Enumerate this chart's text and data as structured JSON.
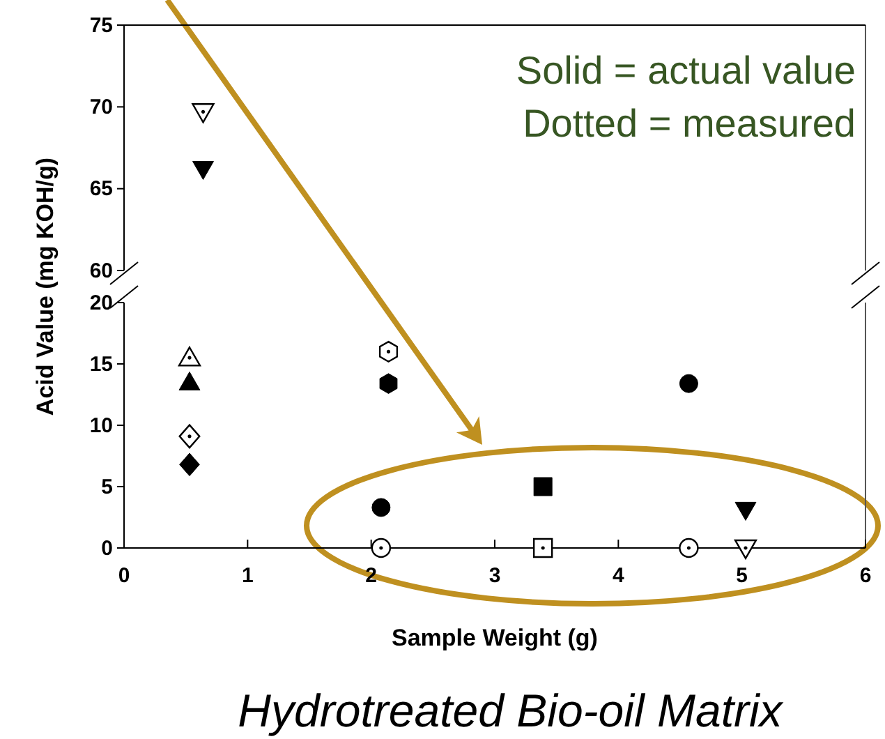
{
  "chart_data": [
    {
      "type": "scatter",
      "xlim": [
        0,
        6
      ],
      "ylim": [
        60,
        75
      ],
      "yticks": [
        60,
        65,
        70,
        75
      ],
      "tick_labels": "y",
      "grid": false,
      "annotations": [
        "Solid = actual value",
        "Dotted = measured"
      ],
      "series": [
        {
          "color": "#ffffff",
          "marker": "triangle-down",
          "x": [
            0.64
          ],
          "values": [
            69.7
          ]
        },
        {
          "color": "#000000",
          "marker": "triangle-down",
          "x": [
            0.64
          ],
          "values": [
            66.2
          ]
        }
      ]
    },
    {
      "type": "scatter",
      "title": "Hydrotreated Bio-oil Matrix",
      "xlabel": "Sample Weight (g)",
      "ylabel": "Acid Value (mg KOH/g)",
      "xlim": [
        0,
        6
      ],
      "xticks": [
        0,
        1,
        2,
        3,
        4,
        5,
        6
      ],
      "ylim": [
        0,
        20
      ],
      "yticks": [
        0,
        5,
        10,
        15,
        20
      ],
      "grid": false,
      "series": [
        {
          "color": "#ffffff",
          "marker": "triangle",
          "x": [
            0.53
          ],
          "values": [
            15.5
          ]
        },
        {
          "color": "#000000",
          "marker": "triangle",
          "x": [
            0.53
          ],
          "values": [
            13.5
          ]
        },
        {
          "color": "#ffffff",
          "marker": "diamond",
          "x": [
            0.53
          ],
          "values": [
            9.1
          ]
        },
        {
          "color": "#000000",
          "marker": "diamond",
          "x": [
            0.53
          ],
          "values": [
            6.8
          ]
        },
        {
          "color": "#ffffff",
          "x": [
            2.14
          ],
          "values": [
            16.0
          ]
        },
        {
          "color": "#000000",
          "x": [
            2.14
          ],
          "values": [
            13.4
          ]
        },
        {
          "color": "#000000",
          "marker": "circle",
          "x": [
            2.08,
            4.57
          ],
          "values": [
            3.3,
            13.4
          ]
        },
        {
          "color": "#ffffff",
          "marker": "circle",
          "x": [
            2.08,
            4.57
          ],
          "values": [
            0,
            0
          ]
        },
        {
          "color": "#000000",
          "marker": "square",
          "x": [
            3.39
          ],
          "values": [
            5.0
          ]
        },
        {
          "color": "#ffffff",
          "marker": "square",
          "x": [
            3.39
          ],
          "values": [
            0
          ]
        },
        {
          "color": "#000000",
          "marker": "triangle-down",
          "x": [
            5.03
          ],
          "values": [
            3.1
          ]
        },
        {
          "color": "#ffffff",
          "marker": "triangle-down",
          "x": [
            5.03
          ],
          "values": [
            0
          ]
        }
      ]
    }
  ]
}
